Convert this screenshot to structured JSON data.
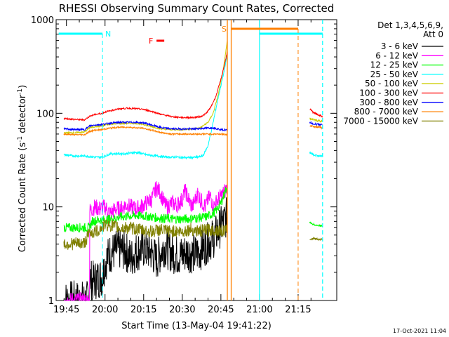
{
  "chart_data": {
    "type": "line",
    "title": "RHESSI Observing Summary Count Rates, Corrected",
    "xlabel": "Start Time (13-May-04 19:41:22)",
    "ylabel_main": "Corrected Count Rate (s",
    "ylabel_sup1": "-1",
    "ylabel_mid": " detector",
    "ylabel_sup2": "-1",
    "ylabel_end": ")",
    "y_scale": "log",
    "ylim": [
      1,
      1000
    ],
    "xlim_minutes": [
      -3,
      31
    ],
    "x_reference": "20:00",
    "x_ticks": [
      {
        "label": "19:45",
        "t": -15
      },
      {
        "label": "20:00",
        "t": 0
      },
      {
        "label": "20:15",
        "t": 15
      },
      {
        "label": "20:30",
        "t": 30
      },
      {
        "label": "20:45",
        "t": 45
      },
      {
        "label": "21:00",
        "t": 60
      },
      {
        "label": "21:15",
        "t": 75
      }
    ],
    "y_ticks": [
      {
        "label": "1",
        "v": 1
      },
      {
        "label": "10",
        "v": 10
      },
      {
        "label": "100",
        "v": 100
      },
      {
        "label": "1000",
        "v": 1000
      }
    ],
    "legend": {
      "header1": "Det 1,3,4,5,6,9,",
      "header2": "Att 0",
      "position": "right"
    },
    "series": [
      {
        "name": "3 - 6 keV",
        "color": "#000000",
        "points": [
          [
            -16,
            1
          ],
          [
            -12,
            1
          ],
          [
            -6,
            1
          ],
          [
            -6,
            1.8
          ],
          [
            -5,
            1.6
          ],
          [
            -3,
            1.7
          ],
          [
            -1,
            1.8
          ],
          [
            0,
            2.6
          ],
          [
            2,
            3.2
          ],
          [
            5,
            3.5
          ],
          [
            8,
            3.4
          ],
          [
            10,
            2.8
          ],
          [
            12,
            3.3
          ],
          [
            15,
            3.6
          ],
          [
            18,
            3.3
          ],
          [
            20,
            2.7
          ],
          [
            23,
            3.8
          ],
          [
            26,
            3.2
          ],
          [
            29,
            3.0
          ],
          [
            32,
            3.3
          ],
          [
            35,
            3.1
          ],
          [
            38,
            3.6
          ],
          [
            40,
            4.2
          ],
          [
            42,
            4.6
          ],
          [
            43,
            5
          ],
          [
            44,
            5.6
          ],
          [
            46,
            6.8
          ],
          [
            47.5,
            8
          ]
        ]
      },
      {
        "name": "6 - 12 keV",
        "color": "#ff00ff",
        "points": [
          [
            -16,
            1
          ],
          [
            -6,
            1
          ],
          [
            -6,
            9
          ],
          [
            -4,
            10
          ],
          [
            -2,
            9.5
          ],
          [
            0,
            10
          ],
          [
            2,
            8.5
          ],
          [
            4,
            9.5
          ],
          [
            6,
            9.5
          ],
          [
            8,
            10.5
          ],
          [
            10,
            10
          ],
          [
            12,
            9.5
          ],
          [
            14,
            10
          ],
          [
            16,
            11
          ],
          [
            18,
            12
          ],
          [
            19,
            14
          ],
          [
            20,
            16
          ],
          [
            21,
            15
          ],
          [
            22,
            13
          ],
          [
            23,
            11
          ],
          [
            24,
            10
          ],
          [
            26,
            11
          ],
          [
            28,
            10.5
          ],
          [
            30,
            12
          ],
          [
            31,
            15
          ],
          [
            32,
            13
          ],
          [
            33,
            11
          ],
          [
            34,
            10
          ],
          [
            35,
            12
          ],
          [
            36,
            14
          ],
          [
            37,
            12
          ],
          [
            38,
            11
          ],
          [
            39,
            10
          ],
          [
            40,
            12
          ],
          [
            41,
            13
          ],
          [
            42,
            10
          ],
          [
            43,
            11
          ],
          [
            44,
            12
          ],
          [
            45,
            13
          ],
          [
            46,
            14
          ],
          [
            47.5,
            16
          ]
        ]
      },
      {
        "name": "12 - 25 keV",
        "color": "#00ff00",
        "points": [
          [
            -16,
            6
          ],
          [
            -6,
            6
          ],
          [
            -5,
            7
          ],
          [
            -3,
            7.2
          ],
          [
            0,
            7.3
          ],
          [
            3,
            7.5
          ],
          [
            6,
            7.8
          ],
          [
            9,
            8
          ],
          [
            12,
            8.1
          ],
          [
            15,
            8
          ],
          [
            18,
            7.8
          ],
          [
            21,
            7.6
          ],
          [
            24,
            7.5
          ],
          [
            27,
            7.4
          ],
          [
            30,
            7.4
          ],
          [
            33,
            7.5
          ],
          [
            36,
            7.6
          ],
          [
            39,
            7.8
          ],
          [
            41,
            8.2
          ],
          [
            43,
            9
          ],
          [
            45,
            11
          ],
          [
            46,
            13
          ],
          [
            47.5,
            17
          ]
        ]
      },
      {
        "name": "25 - 50 keV",
        "color": "#00ffff",
        "points": [
          [
            -16,
            36
          ],
          [
            -12,
            35
          ],
          [
            -8,
            35
          ],
          [
            -4,
            34
          ],
          [
            -1,
            34
          ],
          [
            0,
            35
          ],
          [
            2,
            37
          ],
          [
            5,
            37
          ],
          [
            8,
            37
          ],
          [
            11,
            38
          ],
          [
            13,
            38
          ],
          [
            16,
            36
          ],
          [
            20,
            35
          ],
          [
            24,
            34
          ],
          [
            28,
            34
          ],
          [
            32,
            33.5
          ],
          [
            36,
            34
          ],
          [
            38,
            35
          ],
          [
            40,
            45
          ],
          [
            42,
            80
          ],
          [
            44,
            150
          ],
          [
            46,
            260
          ],
          [
            47.5,
            420
          ]
        ]
      },
      {
        "name": "50 - 100 keV",
        "color": "#cccc00",
        "points": [
          [
            -16,
            62
          ],
          [
            -12,
            62
          ],
          [
            -8,
            63
          ],
          [
            -6,
            70
          ],
          [
            -4,
            72
          ],
          [
            -1,
            73
          ],
          [
            0,
            75
          ],
          [
            3,
            77
          ],
          [
            6,
            78
          ],
          [
            9,
            78
          ],
          [
            12,
            78
          ],
          [
            15,
            76
          ],
          [
            18,
            72
          ],
          [
            22,
            68
          ],
          [
            26,
            67
          ],
          [
            30,
            67
          ],
          [
            34,
            68
          ],
          [
            37,
            70
          ],
          [
            40,
            80
          ],
          [
            42,
            100
          ],
          [
            44,
            160
          ],
          [
            46,
            300
          ],
          [
            47.5,
            600
          ]
        ]
      },
      {
        "name": "100 - 300 keV",
        "color": "#ff0000",
        "points": [
          [
            -16,
            88
          ],
          [
            -12,
            86
          ],
          [
            -8,
            85
          ],
          [
            -6,
            93
          ],
          [
            -4,
            97
          ],
          [
            -1,
            100
          ],
          [
            0,
            103
          ],
          [
            3,
            108
          ],
          [
            6,
            112
          ],
          [
            9,
            113
          ],
          [
            12,
            112
          ],
          [
            15,
            110
          ],
          [
            18,
            105
          ],
          [
            22,
            97
          ],
          [
            26,
            92
          ],
          [
            30,
            90
          ],
          [
            34,
            90
          ],
          [
            37,
            92
          ],
          [
            39,
            98
          ],
          [
            41,
            115
          ],
          [
            43,
            150
          ],
          [
            45,
            230
          ],
          [
            46.5,
            340
          ],
          [
            47.5,
            460
          ]
        ]
      },
      {
        "name": "300 - 800 keV",
        "color": "#0000ff",
        "points": [
          [
            -16,
            68
          ],
          [
            -12,
            67
          ],
          [
            -8,
            67
          ],
          [
            -6,
            73
          ],
          [
            -4,
            75
          ],
          [
            -1,
            76
          ],
          [
            0,
            77
          ],
          [
            3,
            79
          ],
          [
            6,
            80
          ],
          [
            9,
            80
          ],
          [
            12,
            80
          ],
          [
            15,
            79
          ],
          [
            18,
            75
          ],
          [
            22,
            70
          ],
          [
            26,
            68
          ],
          [
            30,
            68
          ],
          [
            34,
            68
          ],
          [
            38,
            69
          ],
          [
            42,
            70
          ],
          [
            45,
            67
          ],
          [
            47.5,
            66
          ]
        ]
      },
      {
        "name": "800 - 7000 keV",
        "color": "#ff8000",
        "points": [
          [
            -16,
            60
          ],
          [
            -12,
            59
          ],
          [
            -8,
            59
          ],
          [
            -6,
            64
          ],
          [
            -4,
            66
          ],
          [
            -1,
            67
          ],
          [
            0,
            68
          ],
          [
            3,
            70
          ],
          [
            6,
            71
          ],
          [
            9,
            71
          ],
          [
            12,
            70
          ],
          [
            15,
            69
          ],
          [
            18,
            66
          ],
          [
            22,
            62
          ],
          [
            26,
            60
          ],
          [
            30,
            60
          ],
          [
            34,
            60
          ],
          [
            38,
            60
          ],
          [
            42,
            60
          ],
          [
            45,
            60
          ],
          [
            47.5,
            59
          ]
        ]
      },
      {
        "name": "7000 - 15000 keV",
        "color": "#808000",
        "points": [
          [
            -16,
            4
          ],
          [
            -8,
            4.1
          ],
          [
            -6,
            5.3
          ],
          [
            -3,
            5.5
          ],
          [
            0,
            6.5
          ],
          [
            3,
            6.3
          ],
          [
            6,
            5.9
          ],
          [
            9,
            6
          ],
          [
            12,
            5.8
          ],
          [
            15,
            5.6
          ],
          [
            18,
            5.4
          ],
          [
            21,
            5.7
          ],
          [
            24,
            5.5
          ],
          [
            27,
            5.5
          ],
          [
            30,
            5.4
          ],
          [
            33,
            5.8
          ],
          [
            36,
            5.5
          ],
          [
            39,
            5.6
          ],
          [
            42,
            5.7
          ],
          [
            45,
            5.6
          ],
          [
            47.5,
            5.5
          ]
        ]
      }
    ],
    "late_segments": [
      {
        "series": "100 - 300 keV",
        "points": [
          [
            79.5,
            112
          ],
          [
            81,
            102
          ],
          [
            83,
            96
          ],
          [
            84.5,
            92
          ]
        ]
      },
      {
        "series": "50 - 100 keV",
        "points": [
          [
            79.5,
            88
          ],
          [
            81,
            85
          ],
          [
            83,
            83
          ],
          [
            84.5,
            82
          ]
        ]
      },
      {
        "series": "300 - 800 keV",
        "points": [
          [
            79.5,
            80
          ],
          [
            81,
            77
          ],
          [
            83,
            76
          ],
          [
            84.5,
            75
          ]
        ]
      },
      {
        "series": "800 - 7000 keV",
        "points": [
          [
            79.5,
            74
          ],
          [
            81,
            72
          ],
          [
            83,
            71
          ],
          [
            84.5,
            70
          ]
        ]
      },
      {
        "series": "25 - 50 keV",
        "points": [
          [
            79.5,
            38
          ],
          [
            81,
            36
          ],
          [
            83,
            35
          ],
          [
            84.5,
            35
          ]
        ]
      },
      {
        "series": "12 - 25 keV",
        "points": [
          [
            79.5,
            6.8
          ],
          [
            81,
            6.5
          ],
          [
            83,
            6.3
          ],
          [
            84.5,
            6.3
          ]
        ]
      },
      {
        "series": "7000 - 15000 keV",
        "points": [
          [
            79.5,
            4.5
          ],
          [
            81,
            4.6
          ],
          [
            83,
            4.5
          ],
          [
            84.5,
            4.5
          ]
        ]
      }
    ],
    "attenuator_lines": [
      {
        "t": 47.5,
        "color": "#ff8000"
      },
      {
        "t": 49,
        "color": "#ff8000"
      }
    ],
    "flags": [
      {
        "label": "N",
        "color": "#00ffff",
        "bar_from": -18,
        "bar_to": -1,
        "dash_t": -1,
        "bar_from2": 60,
        "bar_to2": 84.5
      },
      {
        "label": "F",
        "color": "#ff0000",
        "bar_from": 20,
        "bar_to": 23
      },
      {
        "label": "S",
        "color": "#ff8000",
        "bar_from": 49,
        "bar_to": 75,
        "dash_t": 75
      }
    ],
    "eclipse_lines": [
      {
        "t": 60,
        "color": "#00ffff",
        "style": "solid"
      },
      {
        "t": 84.5,
        "color": "#00ffff",
        "style": "dashed"
      }
    ]
  },
  "footer": {
    "timestamp": "17-Oct-2021 11:04"
  }
}
